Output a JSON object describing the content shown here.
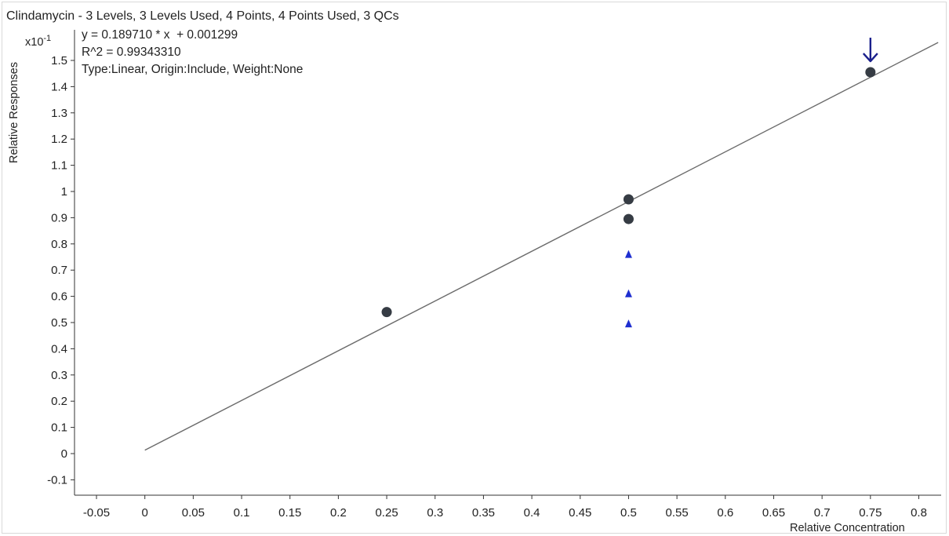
{
  "chart_data": {
    "type": "scatter",
    "title": "Clindamycin - 3 Levels, 3 Levels Used, 4 Points, 4 Points Used, 3 QCs",
    "equation": "y = 0.189710 * x  + 0.001299",
    "r_squared": "R^2 = 0.99343310",
    "fit_info": "Type:Linear, Origin:Include, Weight:None",
    "ylabel": "Relative Responses",
    "xlabel": "Relative Concentration",
    "y_multiplier": "x10",
    "y_multiplier_exp": "-1",
    "xlim": [
      -0.1,
      0.82
    ],
    "ylim": [
      -0.15,
      1.6
    ],
    "x_ticks": [
      "-0.05",
      "0",
      "0.05",
      "0.1",
      "0.15",
      "0.2",
      "0.25",
      "0.3",
      "0.35",
      "0.4",
      "0.45",
      "0.5",
      "0.55",
      "0.6",
      "0.65",
      "0.7",
      "0.75",
      "0.8"
    ],
    "y_ticks": [
      "-0.1",
      "0",
      "0.1",
      "0.2",
      "0.3",
      "0.4",
      "0.5",
      "0.6",
      "0.7",
      "0.8",
      "0.9",
      "1",
      "1.1",
      "1.2",
      "1.3",
      "1.4",
      "1.5"
    ],
    "grid": false,
    "fit_line": {
      "slope": 1.8971,
      "intercept": 0.01299,
      "x_range": [
        0,
        0.82
      ],
      "color": "#6b6b6b"
    },
    "series": [
      {
        "type": "calibration",
        "marker": "circle",
        "color": "#363c44",
        "points": [
          {
            "x": 0.25,
            "y": 0.54
          },
          {
            "x": 0.5,
            "y": 0.97
          },
          {
            "x": 0.5,
            "y": 0.895
          },
          {
            "x": 0.75,
            "y": 1.455
          }
        ]
      },
      {
        "type": "qc",
        "marker": "triangle",
        "color": "#1f2fd0",
        "points": [
          {
            "x": 0.5,
            "y": 0.76
          },
          {
            "x": 0.5,
            "y": 0.61
          },
          {
            "x": 0.5,
            "y": 0.495
          }
        ]
      }
    ],
    "arrow_marker": {
      "x": 0.75,
      "y": 1.455,
      "color": "#1a1f8c"
    }
  }
}
